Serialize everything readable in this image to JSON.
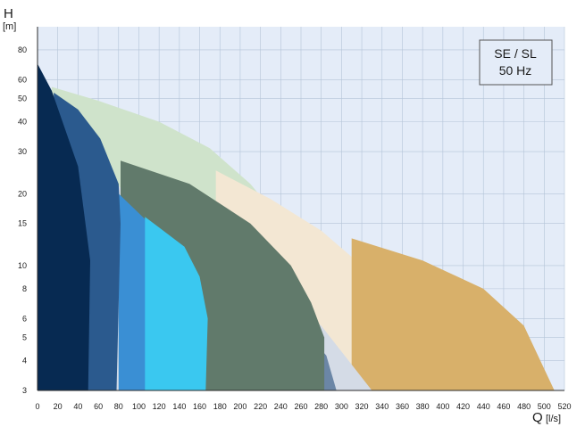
{
  "chart_data": {
    "type": "area",
    "x_axis": {
      "title": "Q",
      "unit": "[l/s]",
      "range": [
        0,
        520
      ],
      "ticks": [
        0,
        20,
        40,
        60,
        80,
        100,
        120,
        140,
        160,
        180,
        200,
        220,
        240,
        260,
        280,
        300,
        320,
        340,
        360,
        380,
        400,
        420,
        440,
        460,
        480,
        500,
        520
      ]
    },
    "y_axis": {
      "title": "H",
      "unit": "[m]",
      "scale": "log",
      "range": [
        3,
        100
      ],
      "ticks": [
        3,
        4,
        5,
        6,
        8,
        10,
        15,
        20,
        30,
        40,
        50,
        60,
        80
      ]
    },
    "grid": true,
    "legend_box": {
      "line1": "SE / SL",
      "line2": "50 Hz",
      "placement": "top-right"
    },
    "series": [
      {
        "color": "#cfe3cb",
        "points": [
          [
            14,
            56
          ],
          [
            60,
            49
          ],
          [
            120,
            40
          ],
          [
            170,
            31
          ],
          [
            210,
            22
          ],
          [
            248,
            14
          ],
          [
            272,
            7.5
          ],
          [
            283,
            5
          ]
        ]
      },
      {
        "color": "#f3e7d3",
        "points": [
          [
            176,
            25
          ],
          [
            230,
            19
          ],
          [
            280,
            14
          ],
          [
            320,
            10
          ],
          [
            345,
            6.5
          ],
          [
            360,
            3
          ]
        ]
      },
      {
        "color": "#d8b06a",
        "points": [
          [
            310,
            13
          ],
          [
            380,
            10.5
          ],
          [
            440,
            8
          ],
          [
            480,
            5.6
          ],
          [
            510,
            3
          ]
        ]
      },
      {
        "color": "#d4dbe6",
        "points": [
          [
            78,
            22
          ],
          [
            150,
            11
          ],
          [
            220,
            8
          ],
          [
            280,
            5.6
          ],
          [
            330,
            3
          ]
        ]
      },
      {
        "color": "#6b86a6",
        "points": [
          [
            102,
            19
          ],
          [
            185,
            10
          ],
          [
            240,
            7
          ],
          [
            285,
            4.2
          ],
          [
            295,
            3
          ]
        ]
      },
      {
        "color": "#617a6b",
        "points": [
          [
            82,
            27.5
          ],
          [
            150,
            22
          ],
          [
            210,
            15
          ],
          [
            250,
            10
          ],
          [
            270,
            7
          ],
          [
            283,
            5
          ]
        ]
      },
      {
        "color": "#3a8fd4",
        "points": [
          [
            80,
            20
          ],
          [
            130,
            12.5
          ],
          [
            150,
            8
          ],
          [
            160,
            5
          ],
          [
            165,
            3
          ]
        ]
      },
      {
        "color": "#3ac8f0",
        "points": [
          [
            106,
            16
          ],
          [
            145,
            12
          ],
          [
            160,
            9
          ],
          [
            168,
            6
          ],
          [
            166,
            3
          ]
        ]
      },
      {
        "color": "#2b5a8e",
        "points": [
          [
            16,
            53
          ],
          [
            40,
            45
          ],
          [
            62,
            34
          ],
          [
            80,
            22
          ],
          [
            82,
            15
          ],
          [
            78,
            3
          ]
        ]
      },
      {
        "color": "#072a52",
        "points": [
          [
            0,
            70
          ],
          [
            14,
            54
          ],
          [
            40,
            26
          ],
          [
            52,
            10.5
          ],
          [
            50,
            3
          ]
        ]
      }
    ]
  }
}
